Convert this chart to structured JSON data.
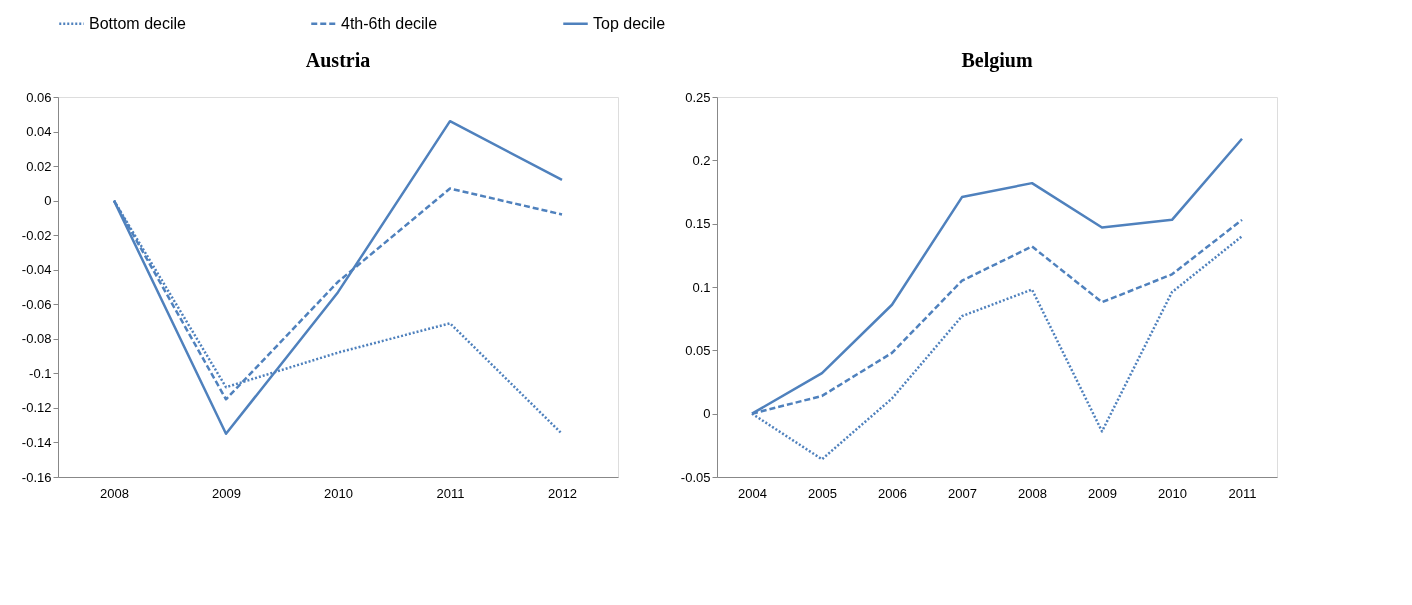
{
  "chart_data": [
    {
      "type": "line",
      "title": "Austria",
      "categories": [
        "2008",
        "2009",
        "2010",
        "2011",
        "2012"
      ],
      "ylim": [
        -0.16,
        0.06
      ],
      "yticks": [
        -0.16,
        -0.14,
        -0.12,
        -0.1,
        -0.08,
        -0.06,
        -0.04,
        -0.02,
        0,
        0.02,
        0.04,
        0.06
      ],
      "grid": false,
      "legend": "top",
      "series": [
        {
          "name": "Bottom decile",
          "color": "#4f81bd",
          "line_style": "dotted",
          "values": [
            0,
            -0.108,
            -0.088,
            -0.071,
            -0.135
          ]
        },
        {
          "name": "4th-6th decile",
          "color": "#4f81bd",
          "line_style": "dashed",
          "values": [
            0,
            -0.115,
            -0.047,
            0.007,
            -0.008
          ]
        },
        {
          "name": "Top decile",
          "color": "#4f81bd",
          "line_style": "solid",
          "values": [
            0,
            -0.135,
            -0.053,
            0.046,
            0.012
          ]
        }
      ]
    },
    {
      "type": "line",
      "title": "Belgium",
      "categories": [
        "2004",
        "2005",
        "2006",
        "2007",
        "2008",
        "2009",
        "2010",
        "2011"
      ],
      "ylim": [
        -0.05,
        0.25
      ],
      "yticks": [
        -0.05,
        0,
        0.05,
        0.1,
        0.15,
        0.2,
        0.25
      ],
      "grid": false,
      "series": [
        {
          "name": "Bottom decile",
          "color": "#4f81bd",
          "line_style": "dotted",
          "values": [
            0,
            -0.036,
            0.012,
            0.077,
            0.098,
            -0.014,
            0.096,
            0.14
          ]
        },
        {
          "name": "4th-6th decile",
          "color": "#4f81bd",
          "line_style": "dashed",
          "values": [
            0,
            0.014,
            0.048,
            0.105,
            0.132,
            0.088,
            0.11,
            0.153
          ]
        },
        {
          "name": "Top decile",
          "color": "#4f81bd",
          "line_style": "solid",
          "values": [
            0,
            0.032,
            0.086,
            0.171,
            0.182,
            0.147,
            0.153,
            0.217
          ]
        }
      ]
    }
  ]
}
